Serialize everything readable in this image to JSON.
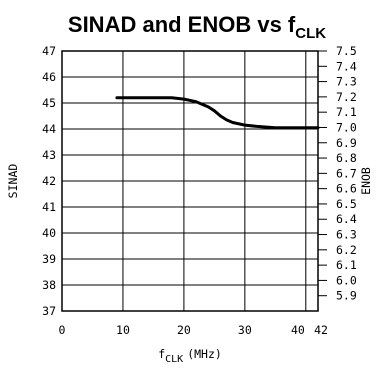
{
  "chart_data": {
    "type": "line",
    "title": {
      "main": "SINAD and ENOB vs f",
      "sub": "CLK"
    },
    "xlabel": {
      "main": "f",
      "sub": "CLK",
      "unit": "(MHz)"
    },
    "ylabel": "SINAD",
    "y2label": "ENOB",
    "xlim": [
      0,
      42
    ],
    "ylim": [
      37,
      47
    ],
    "y2lim": [
      5.8,
      7.5
    ],
    "x_ticks": [
      "0",
      "10",
      "20",
      "30",
      "40",
      "42"
    ],
    "y_ticks": [
      "37",
      "38",
      "39",
      "40",
      "41",
      "42",
      "43",
      "44",
      "45",
      "46",
      "47"
    ],
    "y2_ticks": [
      "5.9",
      "6.0",
      "6.1",
      "6.2",
      "6.3",
      "6.4",
      "6.5",
      "6.6",
      "6.7",
      "6.8",
      "6.9",
      "7.0",
      "7.1",
      "7.2",
      "7.3",
      "7.4",
      "7.5"
    ],
    "grid": true,
    "series": [
      {
        "x": [
          9,
          12,
          15,
          18,
          20,
          22,
          24,
          25,
          26,
          27,
          28,
          30,
          32,
          35,
          38,
          40,
          42
        ],
        "y": [
          45.2,
          45.2,
          45.2,
          45.2,
          45.15,
          45.05,
          44.85,
          44.7,
          44.5,
          44.35,
          44.25,
          44.15,
          44.1,
          44.05,
          44.05,
          44.05,
          44.05
        ]
      }
    ]
  }
}
